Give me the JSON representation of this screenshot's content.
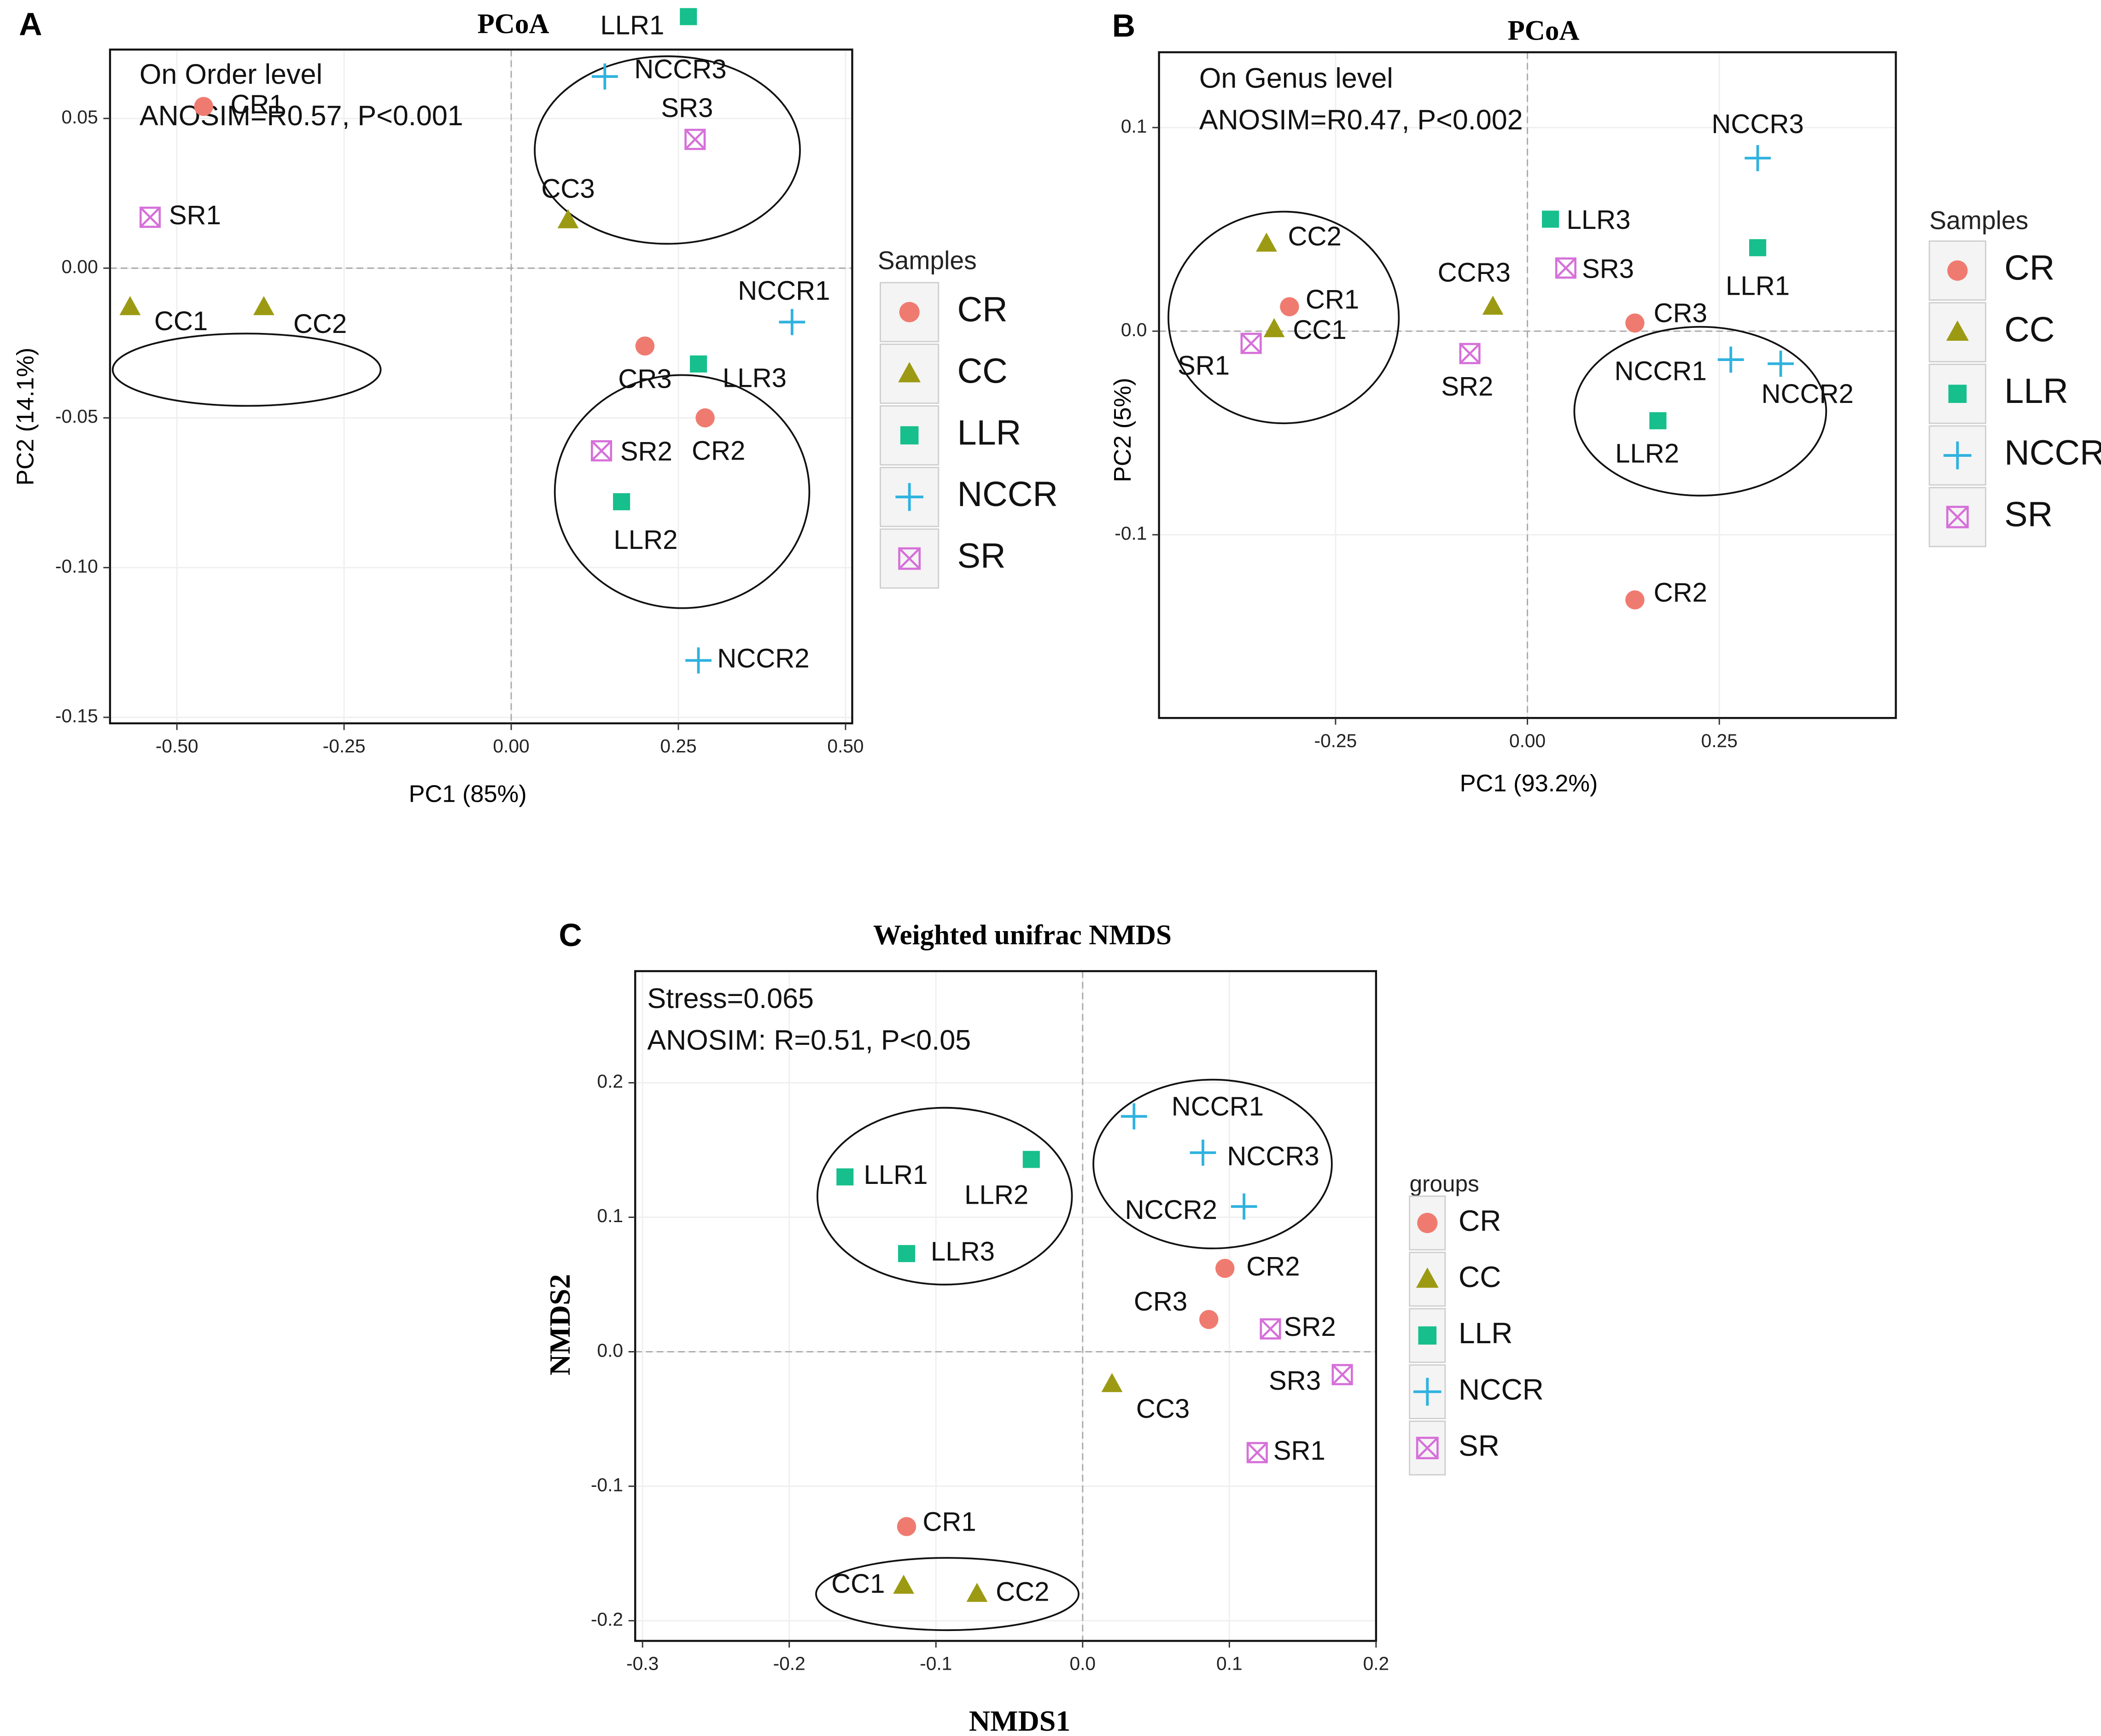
{
  "colors": {
    "CR": "#ef7b70",
    "CC": "#9c9a12",
    "LLR": "#16bf8c",
    "NCCR": "#2fb2df",
    "SR": "#d670d9"
  },
  "chart_data": [
    {
      "id": "A",
      "panel_label": "A",
      "type": "scatter",
      "title": "PCoA",
      "xlabel": "PC1 (85%)",
      "ylabel": "PC2 (14.1%)",
      "xlim": [
        -0.6,
        0.51
      ],
      "ylim": [
        -0.152,
        0.073
      ],
      "xticks": [
        -0.5,
        -0.25,
        0.0,
        0.25,
        0.5
      ],
      "xtick_labels": [
        "-0.50",
        "-0.25",
        "0.00",
        "0.25",
        "0.50"
      ],
      "yticks": [
        -0.15,
        -0.1,
        -0.05,
        0.0,
        0.05
      ],
      "ytick_labels": [
        "-0.15",
        "-0.10",
        "-0.05",
        "0.00",
        "0.05"
      ],
      "annotations": [
        "On Order level",
        "ANOSIM=R0.57, P<0.001"
      ],
      "legend_title": "Samples",
      "legend": [
        "CR",
        "CC",
        "LLR",
        "NCCR",
        "SR"
      ],
      "points": [
        {
          "label": "NCCR3",
          "group": "NCCR",
          "x": 0.14,
          "y": 0.064
        },
        {
          "label": "LLR1",
          "group": "LLR",
          "x": 0.265,
          "y": 0.084
        },
        {
          "label": "SR3",
          "group": "SR",
          "x": 0.275,
          "y": 0.043
        },
        {
          "label": "CR1",
          "group": "CR",
          "x": -0.46,
          "y": 0.054
        },
        {
          "label": "SR1",
          "group": "SR",
          "x": -0.54,
          "y": 0.017
        },
        {
          "label": "CC3",
          "group": "CC",
          "x": 0.085,
          "y": 0.016
        },
        {
          "label": "CC1",
          "group": "CC",
          "x": -0.57,
          "y": -0.013
        },
        {
          "label": "CC2",
          "group": "CC",
          "x": -0.37,
          "y": -0.013
        },
        {
          "label": "NCCR1",
          "group": "NCCR",
          "x": 0.42,
          "y": -0.018
        },
        {
          "label": "CR3",
          "group": "CR",
          "x": 0.2,
          "y": -0.026
        },
        {
          "label": "LLR3",
          "group": "LLR",
          "x": 0.28,
          "y": -0.032
        },
        {
          "label": "CR2",
          "group": "CR",
          "x": 0.29,
          "y": -0.05
        },
        {
          "label": "SR2",
          "group": "SR",
          "x": 0.135,
          "y": -0.061
        },
        {
          "label": "LLR2",
          "group": "LLR",
          "x": 0.165,
          "y": -0.078
        },
        {
          "label": "NCCR2",
          "group": "NCCR",
          "x": 0.28,
          "y": -0.131
        }
      ]
    },
    {
      "id": "B",
      "panel_label": "B",
      "type": "scatter",
      "title": "PCoA",
      "xlabel": "PC1 (93.2%)",
      "ylabel": "PC2 (5%)",
      "xlim": [
        -0.48,
        0.48
      ],
      "ylim": [
        -0.19,
        0.137
      ],
      "xticks": [
        -0.25,
        0.0,
        0.25
      ],
      "xtick_labels": [
        "-0.25",
        "0.00",
        "0.25"
      ],
      "yticks": [
        -0.1,
        0.0,
        0.1
      ],
      "ytick_labels": [
        "-0.1",
        "0.0",
        "0.1"
      ],
      "annotations": [
        "On Genus level",
        "ANOSIM=R0.47, P<0.002"
      ],
      "legend_title": "Samples",
      "legend": [
        "CR",
        "CC",
        "LLR",
        "NCCR",
        "SR"
      ],
      "points": [
        {
          "label": "NCCR3",
          "group": "NCCR",
          "x": 0.3,
          "y": 0.085
        },
        {
          "label": "LLR3",
          "group": "LLR",
          "x": 0.03,
          "y": 0.055
        },
        {
          "label": "SR3",
          "group": "SR",
          "x": 0.05,
          "y": 0.031
        },
        {
          "label": "LLR1",
          "group": "LLR",
          "x": 0.3,
          "y": 0.041
        },
        {
          "label": "CC2",
          "group": "CC",
          "x": -0.34,
          "y": 0.043
        },
        {
          "label": "CCR3",
          "group": "CC",
          "x": -0.045,
          "y": 0.012
        },
        {
          "label": "CR1",
          "group": "CR",
          "x": -0.31,
          "y": 0.012
        },
        {
          "label": "CC1",
          "group": "CC",
          "x": -0.33,
          "y": 0.001
        },
        {
          "label": "SR1",
          "group": "SR",
          "x": -0.36,
          "y": -0.006
        },
        {
          "label": "CR3",
          "group": "CR",
          "x": 0.14,
          "y": 0.004
        },
        {
          "label": "SR2",
          "group": "SR",
          "x": -0.075,
          "y": -0.011
        },
        {
          "label": "NCCR1",
          "group": "NCCR",
          "x": 0.265,
          "y": -0.014
        },
        {
          "label": "NCCR2",
          "group": "NCCR",
          "x": 0.33,
          "y": -0.016
        },
        {
          "label": "LLR2",
          "group": "LLR",
          "x": 0.17,
          "y": -0.044
        },
        {
          "label": "CR2",
          "group": "CR",
          "x": 0.14,
          "y": -0.132
        }
      ]
    },
    {
      "id": "C",
      "panel_label": "C",
      "type": "scatter",
      "title": "Weighted unifrac NMDS",
      "xlabel": "NMDS1",
      "ylabel": "NMDS2",
      "xlim": [
        -0.305,
        0.2
      ],
      "ylim": [
        -0.215,
        0.283
      ],
      "xticks": [
        -0.3,
        -0.2,
        -0.1,
        0.0,
        0.1,
        0.2
      ],
      "xtick_labels": [
        "-0.3",
        "-0.2",
        "-0.1",
        "0.0",
        "0.1",
        "0.2"
      ],
      "yticks": [
        -0.2,
        -0.1,
        0.0,
        0.1,
        0.2
      ],
      "ytick_labels": [
        "-0.2",
        "-0.1",
        "0.0",
        "0.1",
        "0.2"
      ],
      "annotations": [
        "Stress=0.065",
        "ANOSIM: R=0.51, P<0.05"
      ],
      "legend_title": "groups",
      "legend": [
        "CR",
        "CC",
        "LLR",
        "NCCR",
        "SR"
      ],
      "points": [
        {
          "label": "NCCR1",
          "group": "NCCR",
          "x": 0.035,
          "y": 0.175
        },
        {
          "label": "NCCR3",
          "group": "NCCR",
          "x": 0.082,
          "y": 0.148
        },
        {
          "label": "NCCR2",
          "group": "NCCR",
          "x": 0.11,
          "y": 0.108
        },
        {
          "label": "LLR1",
          "group": "LLR",
          "x": -0.162,
          "y": 0.13
        },
        {
          "label": "LLR2",
          "group": "LLR",
          "x": -0.035,
          "y": 0.143
        },
        {
          "label": "LLR3",
          "group": "LLR",
          "x": -0.12,
          "y": 0.073
        },
        {
          "label": "CR2",
          "group": "CR",
          "x": 0.097,
          "y": 0.062
        },
        {
          "label": "CR3",
          "group": "CR",
          "x": 0.086,
          "y": 0.024
        },
        {
          "label": "SR2",
          "group": "SR",
          "x": 0.128,
          "y": 0.017
        },
        {
          "label": "CC3",
          "group": "CC",
          "x": 0.02,
          "y": -0.024
        },
        {
          "label": "SR3",
          "group": "SR",
          "x": 0.177,
          "y": -0.017
        },
        {
          "label": "SR1",
          "group": "SR",
          "x": 0.119,
          "y": -0.075
        },
        {
          "label": "CR1",
          "group": "CR",
          "x": -0.12,
          "y": -0.13
        },
        {
          "label": "CC1",
          "group": "CC",
          "x": -0.122,
          "y": -0.174
        },
        {
          "label": "CC2",
          "group": "CC",
          "x": -0.072,
          "y": -0.18
        }
      ]
    }
  ]
}
